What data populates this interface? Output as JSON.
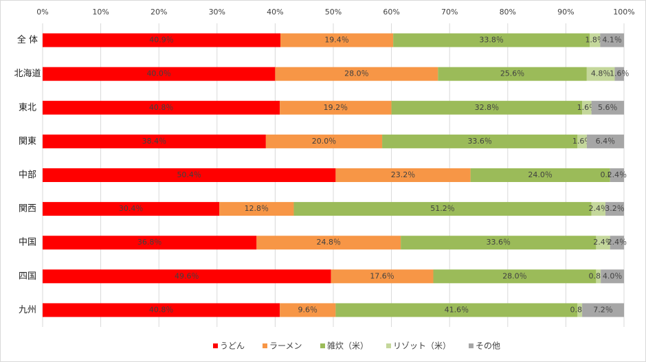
{
  "chart_data": {
    "type": "stacked-bar-horizontal",
    "categories": [
      "全 体",
      "北海道",
      "東北",
      "関東",
      "中部",
      "関西",
      "中国",
      "四国",
      "九州"
    ],
    "series": [
      {
        "name": "うどん",
        "color": "#ff0000",
        "values": [
          40.9,
          40.0,
          40.8,
          38.4,
          50.4,
          30.4,
          36.8,
          49.6,
          40.8
        ],
        "value_labels": [
          "40.9％",
          "40.0％",
          "40.8％",
          "38.4％",
          "50.4％",
          "30.4％",
          "36.8％",
          "49.6％",
          "40.8％"
        ]
      },
      {
        "name": "ラーメン",
        "color": "#f79646",
        "values": [
          19.4,
          28.0,
          19.2,
          20.0,
          23.2,
          12.8,
          24.8,
          17.6,
          9.6
        ],
        "value_labels": [
          "19.4％",
          "28.0％",
          "19.2％",
          "20.0％",
          "23.2％",
          "12.8％",
          "24.8％",
          "17.6％",
          "9.6％"
        ]
      },
      {
        "name": "雑炊（米）",
        "color": "#9bbb59",
        "values": [
          33.8,
          25.6,
          32.8,
          33.6,
          24.0,
          51.2,
          33.6,
          28.0,
          41.6
        ],
        "value_labels": [
          "33.8％",
          "25.6％",
          "32.8％",
          "33.6％",
          "24.0％",
          "51.2％",
          "33.6％",
          "28.0％",
          "41.6％"
        ]
      },
      {
        "name": "リゾット（米）",
        "color": "#c4d79b",
        "values": [
          1.8,
          4.8,
          1.6,
          1.6,
          0.0,
          2.4,
          2.4,
          0.8,
          0.8
        ],
        "value_labels": [
          "1.8％",
          "4.8％",
          "1.6％",
          "1.6％",
          "0.0％",
          "2.4％",
          "2.4％",
          "0.8％",
          "0.8％"
        ]
      },
      {
        "name": "その他",
        "color": "#a6a6a6",
        "values": [
          4.1,
          1.6,
          5.6,
          6.4,
          2.4,
          3.2,
          2.4,
          4.0,
          7.2
        ],
        "value_labels": [
          "4.1％",
          "1.6％",
          "5.6％",
          "6.4％",
          "2.4％",
          "3.2％",
          "2.4％",
          "4.0％",
          "7.2％"
        ]
      }
    ],
    "xlim": [
      0,
      100
    ],
    "xticks": [
      {
        "value": 0,
        "label": "0%"
      },
      {
        "value": 10,
        "label": "10%"
      },
      {
        "value": 20,
        "label": "20%"
      },
      {
        "value": 30,
        "label": "30%"
      },
      {
        "value": 40,
        "label": "40%"
      },
      {
        "value": 50,
        "label": "50%"
      },
      {
        "value": 60,
        "label": "60%"
      },
      {
        "value": 70,
        "label": "70%"
      },
      {
        "value": 80,
        "label": "80%"
      },
      {
        "value": 90,
        "label": "90%"
      },
      {
        "value": 100,
        "label": "100%"
      }
    ],
    "grid": true,
    "legend": "bottom"
  }
}
